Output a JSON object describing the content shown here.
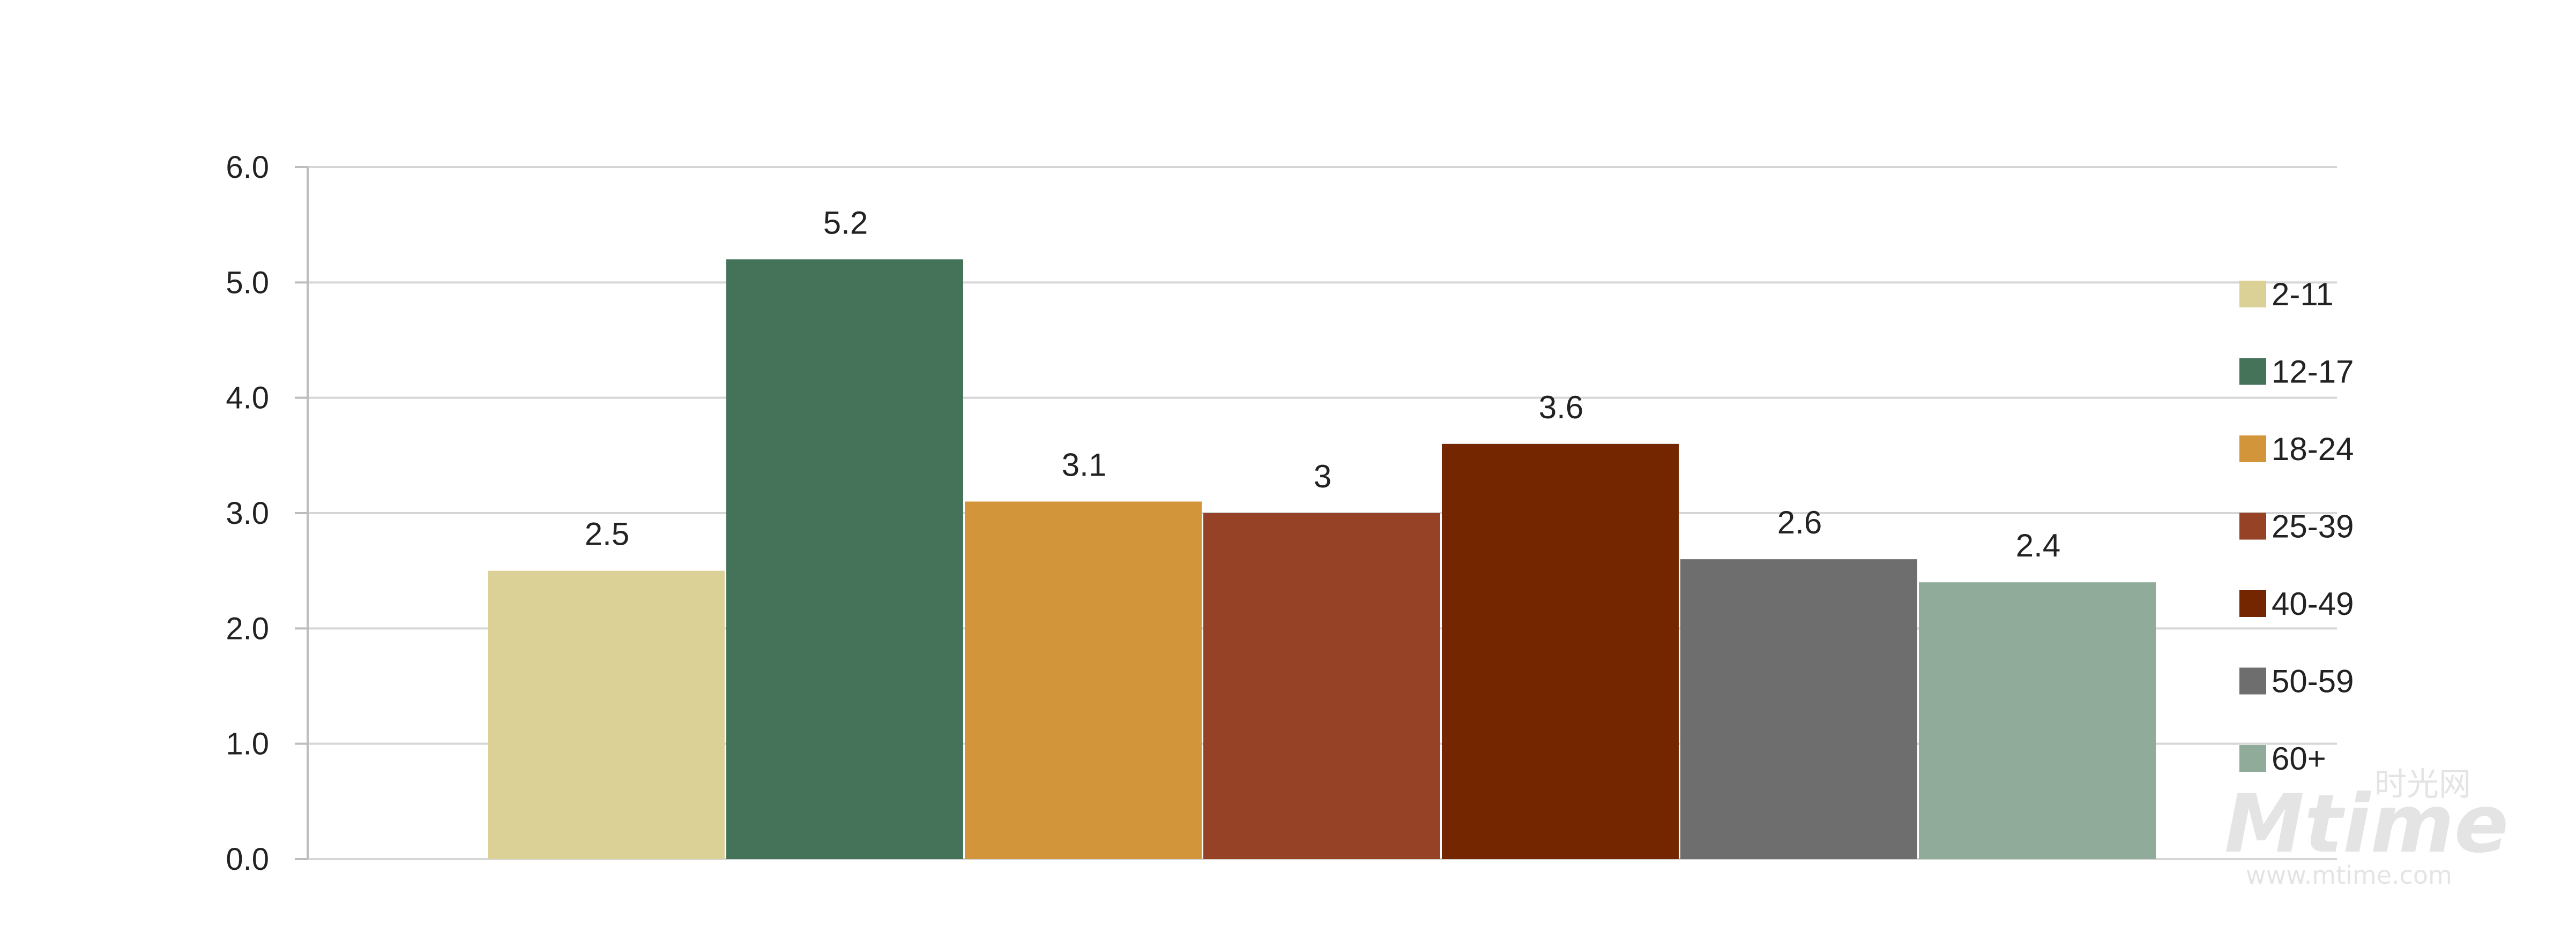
{
  "chart_data": {
    "type": "bar",
    "title": "",
    "xlabel": "",
    "ylabel": "",
    "ylim": [
      0,
      6
    ],
    "yticks": [
      "0.0",
      "1.0",
      "2.0",
      "3.0",
      "4.0",
      "5.0",
      "6.0"
    ],
    "grid": true,
    "legend_position": "right",
    "series": [
      {
        "name": "2-11",
        "value": 2.5,
        "label": "2.5",
        "color": "#dbd196"
      },
      {
        "name": "12-17",
        "value": 5.2,
        "label": "5.2",
        "color": "#44735a"
      },
      {
        "name": "18-24",
        "value": 3.1,
        "label": "3.1",
        "color": "#d2953a"
      },
      {
        "name": "25-39",
        "value": 3.0,
        "label": "3",
        "color": "#954226"
      },
      {
        "name": "40-49",
        "value": 3.6,
        "label": "3.6",
        "color": "#732600"
      },
      {
        "name": "50-59",
        "value": 2.6,
        "label": "2.6",
        "color": "#6e6e6e"
      },
      {
        "name": "60+",
        "value": 2.4,
        "label": "2.4",
        "color": "#91ab9a"
      }
    ]
  },
  "watermark": {
    "logo_text": "Mtime",
    "chinese_text": "时光网",
    "url_text": "www.mtime.com"
  }
}
